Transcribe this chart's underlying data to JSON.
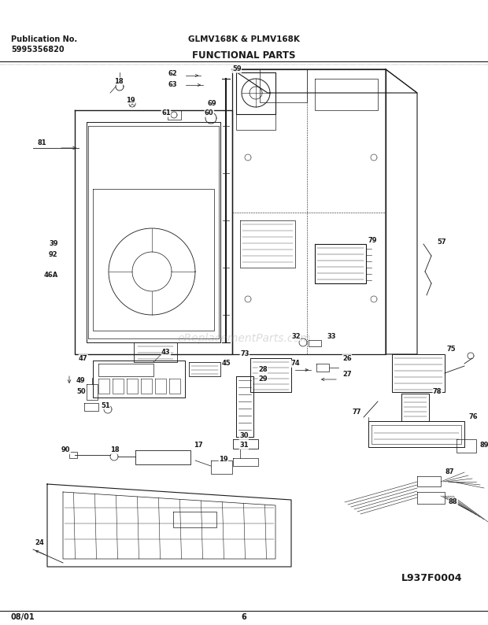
{
  "title": "FUNCTIONAL PARTS",
  "pub_label": "Publication No.",
  "pub_number": "5995356820",
  "model": "GLMV168K & PLMV168K",
  "diagram_code": "L937F0004",
  "date": "08/01",
  "page": "6",
  "bg_color": "#ffffff",
  "text_color": "#1a1a1a",
  "title_fontsize": 8.5,
  "header_fontsize": 7.0,
  "footer_fontsize": 7.0,
  "watermark_text": "eReplacementParts.com",
  "watermark_alpha": 0.28,
  "line_color": "#1a1a1a",
  "lw": 0.55
}
